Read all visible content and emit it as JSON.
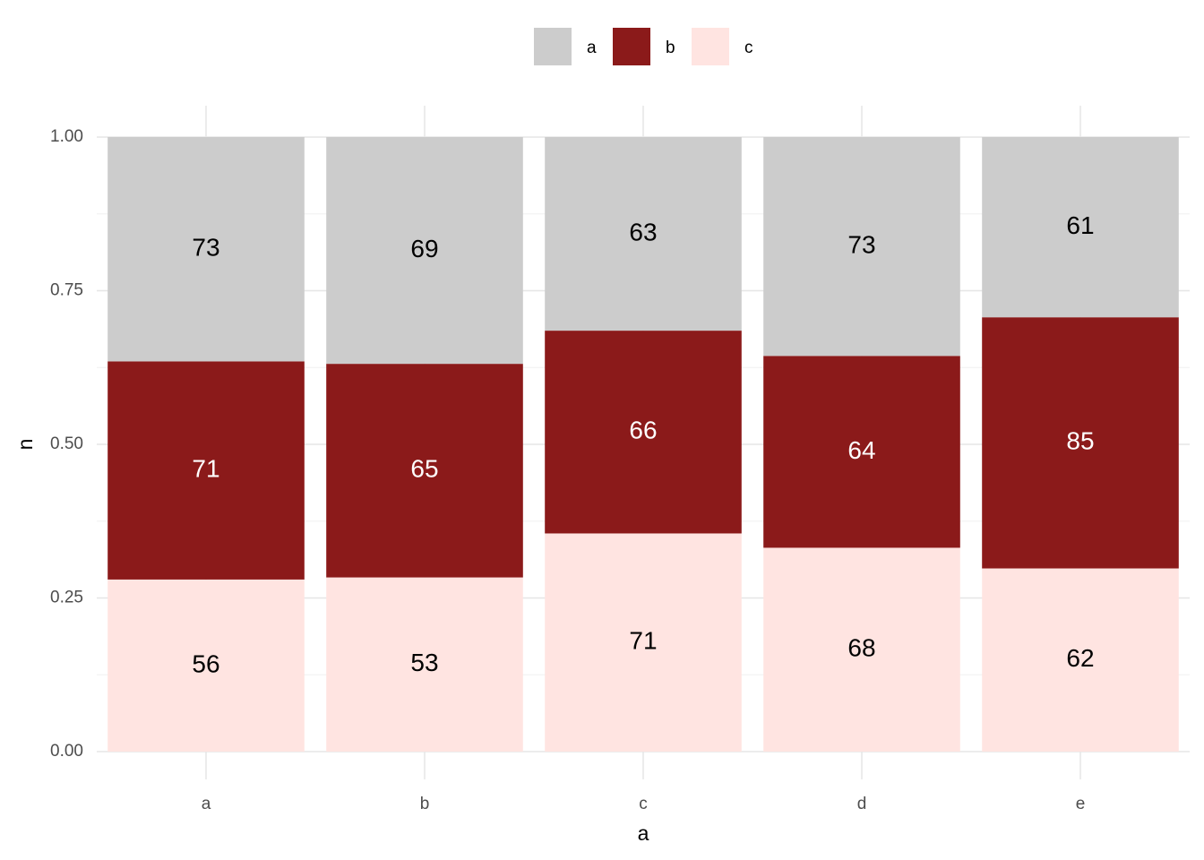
{
  "chart_data": {
    "type": "bar",
    "position": "fill",
    "x_label": "a",
    "y_label": "n",
    "categories": [
      "a",
      "b",
      "c",
      "d",
      "e"
    ],
    "series": [
      {
        "name": "a",
        "color": "#cccccc",
        "label_color": "#000000",
        "values": [
          73,
          69,
          63,
          73,
          61
        ]
      },
      {
        "name": "b",
        "color": "#8b1a1a",
        "label_color": "#ffffff",
        "values": [
          71,
          65,
          66,
          64,
          85
        ]
      },
      {
        "name": "c",
        "color": "#ffe4e1",
        "label_color": "#000000",
        "values": [
          56,
          53,
          71,
          68,
          62
        ]
      }
    ],
    "ylim": [
      0,
      1
    ],
    "yticks": [
      {
        "value": 0,
        "label": "0.00"
      },
      {
        "value": 0.25,
        "label": "0.25"
      },
      {
        "value": 0.5,
        "label": "0.50"
      },
      {
        "value": 0.75,
        "label": "0.75"
      },
      {
        "value": 1,
        "label": "1.00"
      }
    ],
    "grid": true,
    "legend": "top"
  }
}
